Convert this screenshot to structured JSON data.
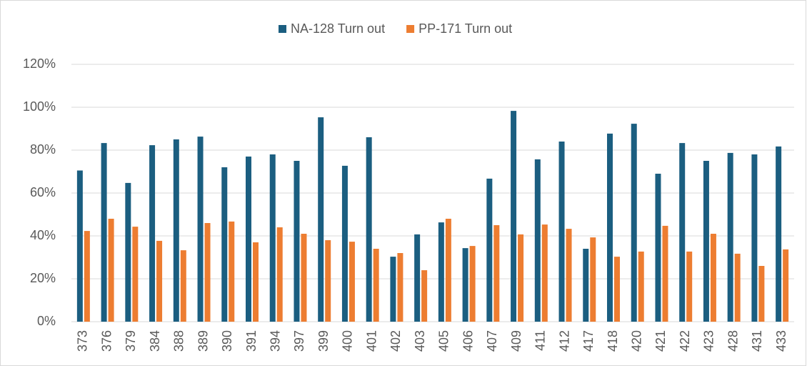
{
  "chart_data": {
    "type": "bar",
    "categories": [
      "373",
      "376",
      "379",
      "384",
      "388",
      "389",
      "390",
      "391",
      "394",
      "397",
      "399",
      "400",
      "401",
      "402",
      "403",
      "405",
      "406",
      "407",
      "409",
      "411",
      "412",
      "417",
      "418",
      "420",
      "421",
      "422",
      "423",
      "428",
      "431",
      "433"
    ],
    "series": [
      {
        "name": "NA-128 Turn out",
        "color": "#1b5e80",
        "values": [
          70.5,
          83.3,
          64.7,
          82.3,
          85,
          86.3,
          72,
          77,
          78,
          75,
          95.3,
          72.7,
          86,
          30.3,
          40.7,
          46.3,
          34.3,
          66.7,
          98.3,
          75.7,
          84,
          34,
          87.7,
          92.3,
          69,
          83.3,
          75,
          78.7,
          78,
          81.7
        ]
      },
      {
        "name": "PP-171 Turn out",
        "color": "#ed7d31",
        "values": [
          42.3,
          48,
          44.3,
          37.7,
          33.3,
          46,
          46.7,
          37,
          44,
          41,
          38,
          37.3,
          34,
          32,
          24,
          48,
          35.3,
          45,
          40.7,
          45.3,
          43.3,
          39.3,
          30.3,
          32.7,
          44.7,
          32.7,
          41,
          31.7,
          26,
          33.7
        ]
      }
    ],
    "ylim": [
      0,
      120
    ],
    "yticks": [
      {
        "value": 0,
        "label": "0%"
      },
      {
        "value": 20,
        "label": "20%"
      },
      {
        "value": 40,
        "label": "40%"
      },
      {
        "value": 60,
        "label": "60%"
      },
      {
        "value": 80,
        "label": "80%"
      },
      {
        "value": 100,
        "label": "100%"
      },
      {
        "value": 120,
        "label": "120%"
      }
    ],
    "grid": true,
    "legend": "top"
  }
}
